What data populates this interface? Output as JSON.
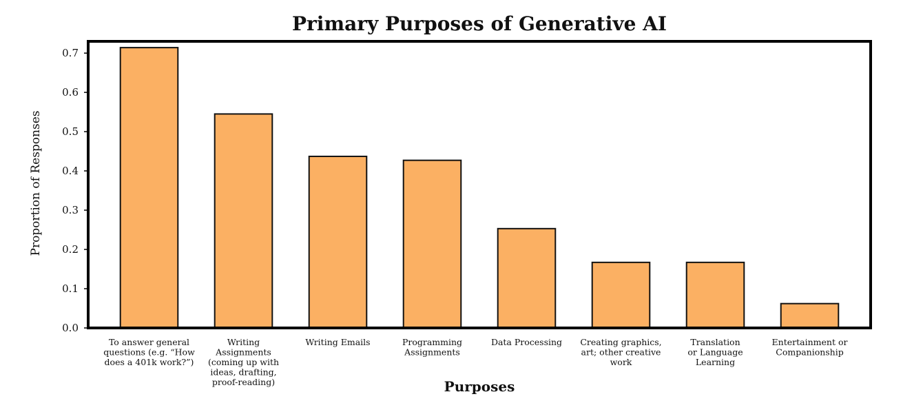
{
  "chart_data": {
    "type": "bar",
    "title": "Primary Purposes of Generative AI",
    "xlabel": "Purposes",
    "ylabel": "Proportion of Responses",
    "ylim": [
      0,
      0.73
    ],
    "yticks": [
      "0.0",
      "0.1",
      "0.2",
      "0.3",
      "0.4",
      "0.5",
      "0.6",
      "0.7"
    ],
    "categories": [
      [
        "To answer general",
        "questions (e.g. “How",
        "does a 401k work?”)"
      ],
      [
        "Writing",
        "Assignments",
        "(coming up with",
        "ideas, drafting,",
        "proof-reading)"
      ],
      [
        "Writing Emails"
      ],
      [
        "Programming",
        "Assignments"
      ],
      [
        "Data Processing"
      ],
      [
        "Creating graphics,",
        "art; other creative",
        "work"
      ],
      [
        "Translation",
        "or Language",
        "Learning"
      ],
      [
        "Entertainment or",
        "Companionship"
      ]
    ],
    "values": [
      0.714,
      0.545,
      0.437,
      0.427,
      0.253,
      0.167,
      0.167,
      0.062
    ],
    "bar_color": "#fbb063",
    "edge_color": "#111111",
    "grid": false,
    "legend": "none"
  }
}
